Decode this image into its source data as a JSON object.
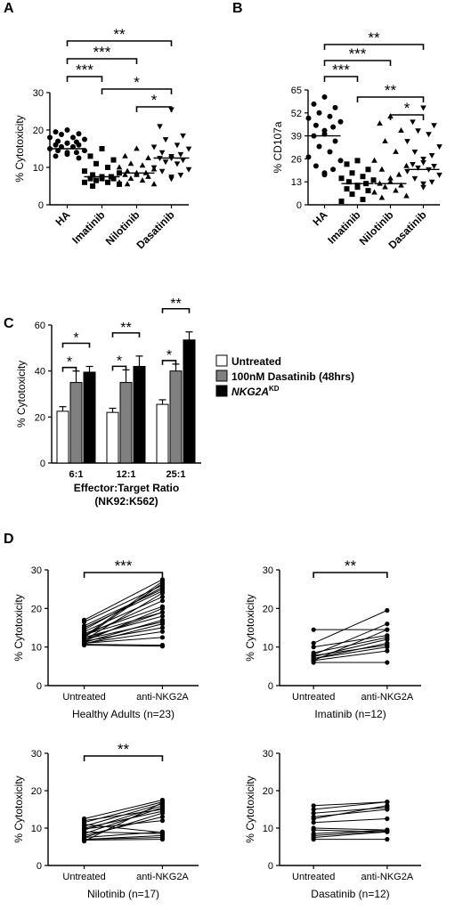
{
  "panels": [
    {
      "letter": "A"
    },
    {
      "letter": "B"
    },
    {
      "letter": "C"
    },
    {
      "letter": "D"
    }
  ],
  "chart_data": [
    {
      "id": "A",
      "type": "scatter",
      "ylabel": "% Cytotoxicity",
      "ylim": [
        0,
        30
      ],
      "yticks": [
        0,
        10,
        20,
        30
      ],
      "categories": [
        "HA",
        "Imatinib",
        "Nilotinib",
        "Dasatinib"
      ],
      "markers": [
        "circle",
        "square",
        "triangle",
        "triangle-down"
      ],
      "medians": [
        15,
        7.5,
        8.5,
        12.5
      ],
      "points": [
        [
          20,
          19.5,
          19,
          18.8,
          18,
          18,
          17.5,
          17,
          16.8,
          16.5,
          16.5,
          16,
          16,
          15.5,
          15.5,
          15,
          14.5,
          14.5,
          14,
          14,
          13.5,
          13,
          12.5
        ],
        [
          15,
          13,
          12,
          11,
          10,
          9,
          8.5,
          8,
          7.5,
          7.5,
          7,
          7,
          7,
          6.5,
          6,
          6,
          5.5,
          5
        ],
        [
          15,
          13,
          12.5,
          11,
          10.5,
          10,
          9.5,
          9,
          8.5,
          8.5,
          8,
          8,
          7.5,
          7,
          6.5,
          6,
          5.5,
          5.5
        ],
        [
          25.5,
          21,
          18.5,
          17.5,
          16,
          15.5,
          15,
          14,
          13.5,
          13,
          12.5,
          12.5,
          12,
          11.5,
          11,
          10,
          9.5,
          9,
          8,
          7.5,
          7
        ]
      ],
      "significance": [
        {
          "from": 0,
          "to": 3,
          "label": "**"
        },
        {
          "from": 0,
          "to": 2,
          "label": "***"
        },
        {
          "from": 0,
          "to": 1,
          "label": "***"
        },
        {
          "from": 1,
          "to": 3,
          "label": "*"
        },
        {
          "from": 2,
          "to": 3,
          "label": "*"
        }
      ]
    },
    {
      "id": "B",
      "type": "scatter",
      "ylabel": "% CD107a",
      "ylim": [
        0,
        65
      ],
      "yticks": [
        0,
        13,
        26,
        39,
        52,
        65
      ],
      "categories": [
        "HA",
        "Imatinib",
        "Nilotinib",
        "Dasatinib"
      ],
      "markers": [
        "circle",
        "square",
        "triangle",
        "triangle-down"
      ],
      "medians": [
        39,
        12,
        12,
        20
      ],
      "points": [
        [
          61,
          57,
          55,
          52,
          50,
          49,
          47,
          45,
          44,
          42,
          40,
          39,
          36,
          33,
          30,
          27,
          25,
          22,
          20,
          18,
          17
        ],
        [
          25,
          23,
          20,
          18,
          16,
          15,
          14,
          13,
          12,
          11,
          10,
          9,
          8,
          6,
          3,
          2
        ],
        [
          50,
          46,
          42,
          36,
          30,
          25,
          22,
          20,
          17,
          15,
          13,
          12,
          11,
          10,
          8,
          7,
          5,
          4
        ],
        [
          55,
          47,
          45,
          42,
          40,
          36,
          33,
          30,
          28,
          26,
          24,
          23,
          22,
          21,
          20,
          19,
          17,
          15,
          13,
          12,
          10
        ]
      ],
      "significance": [
        {
          "from": 0,
          "to": 3,
          "label": "**"
        },
        {
          "from": 0,
          "to": 2,
          "label": "***"
        },
        {
          "from": 0,
          "to": 1,
          "label": "***"
        },
        {
          "from": 1,
          "to": 3,
          "label": "**"
        },
        {
          "from": 2,
          "to": 3,
          "label": "*"
        }
      ]
    },
    {
      "id": "C",
      "type": "bar",
      "ylabel": "% Cytotoxicity",
      "xlabel": "Effector:Target Ratio",
      "xlabel2": "(NK92:K562)",
      "ylim": [
        0,
        60
      ],
      "yticks": [
        0,
        20,
        40,
        60
      ],
      "categories": [
        "6:1",
        "12:1",
        "25:1"
      ],
      "series": [
        {
          "name": "Untreated",
          "color": "#ffffff",
          "values": [
            22.5,
            22,
            25.5
          ],
          "errors": [
            2,
            1.8,
            2
          ]
        },
        {
          "name": "100nM Dasatinib (48hrs)",
          "color": "#808080",
          "values": [
            35,
            35,
            40
          ],
          "errors": [
            5,
            5.5,
            3
          ]
        },
        {
          "name": "NKG2A",
          "name_sup": "KD",
          "color": "#000000",
          "values": [
            39.5,
            42,
            53.5
          ],
          "errors": [
            2.5,
            4.5,
            3.5
          ]
        }
      ],
      "significance": [
        {
          "group": 0,
          "brackets": [
            {
              "a": 0,
              "b": 1,
              "label": "*"
            },
            {
              "a": 0,
              "b": 2,
              "label": "*"
            }
          ]
        },
        {
          "group": 1,
          "brackets": [
            {
              "a": 0,
              "b": 1,
              "label": "*"
            },
            {
              "a": 0,
              "b": 2,
              "label": "**"
            }
          ]
        },
        {
          "group": 2,
          "brackets": [
            {
              "a": 0,
              "b": 1,
              "label": "*"
            },
            {
              "a": 0,
              "b": 2,
              "label": "**"
            }
          ]
        }
      ]
    },
    {
      "id": "D1",
      "type": "line",
      "ylabel": "% Cytotoxicity",
      "xlabel": "Healthy Adults (n=23)",
      "categories": [
        "Untreated",
        "anti-NKG2A"
      ],
      "ylim": [
        0,
        30
      ],
      "yticks": [
        0,
        10,
        20,
        30
      ],
      "pairs": [
        [
          17,
          27.5
        ],
        [
          16.5,
          26
        ],
        [
          15.5,
          25
        ],
        [
          15,
          24.5
        ],
        [
          14.5,
          25.5
        ],
        [
          14,
          23
        ],
        [
          13.5,
          20.5
        ],
        [
          13,
          22
        ],
        [
          12.5,
          26.5
        ],
        [
          12.5,
          18
        ],
        [
          12,
          19
        ],
        [
          12,
          16.5
        ],
        [
          11.8,
          24
        ],
        [
          11.5,
          15
        ],
        [
          11.5,
          20
        ],
        [
          11.2,
          17
        ],
        [
          11,
          14
        ],
        [
          11,
          12.5
        ],
        [
          10.8,
          16
        ],
        [
          10.5,
          10.2
        ],
        [
          12.8,
          27
        ],
        [
          13.2,
          19
        ],
        [
          10.7,
          10.5
        ]
      ],
      "significance": "***"
    },
    {
      "id": "D2",
      "type": "line",
      "ylabel": "% Cytotoxicity",
      "xlabel": "Imatinib (n=12)",
      "categories": [
        "Untreated",
        "anti-NKG2A"
      ],
      "ylim": [
        0,
        30
      ],
      "yticks": [
        0,
        10,
        20,
        30
      ],
      "pairs": [
        [
          14.5,
          14.5
        ],
        [
          11,
          19.5
        ],
        [
          10,
          13
        ],
        [
          8,
          16
        ],
        [
          7.5,
          12
        ],
        [
          7,
          11
        ],
        [
          7,
          10
        ],
        [
          6.5,
          14.5
        ],
        [
          6.5,
          9
        ],
        [
          6,
          6
        ],
        [
          8.5,
          12.5
        ],
        [
          7.8,
          10.5
        ]
      ],
      "significance": "**"
    },
    {
      "id": "D3",
      "type": "line",
      "ylabel": "% Cytotoxicity",
      "xlabel": "Nilotinib (n=17)",
      "categories": [
        "Untreated",
        "anti-NKG2A"
      ],
      "ylim": [
        0,
        30
      ],
      "yticks": [
        0,
        10,
        20,
        30
      ],
      "pairs": [
        [
          12.5,
          17.5
        ],
        [
          12,
          15
        ],
        [
          11.5,
          17
        ],
        [
          10.5,
          16.5
        ],
        [
          10,
          14.5
        ],
        [
          9.5,
          16
        ],
        [
          9,
          8.5
        ],
        [
          8.5,
          15.5
        ],
        [
          8,
          13
        ],
        [
          7.5,
          9
        ],
        [
          7.5,
          14
        ],
        [
          7,
          8
        ],
        [
          7,
          7.5
        ],
        [
          6.8,
          7
        ],
        [
          6.5,
          16.8
        ],
        [
          9.8,
          12
        ],
        [
          11,
          8.8
        ]
      ],
      "significance": "**"
    },
    {
      "id": "D4",
      "type": "line",
      "ylabel": "% Cytotoxicity",
      "xlabel": "Dasatinib (n=12)",
      "categories": [
        "Untreated",
        "anti-NKG2A"
      ],
      "ylim": [
        0,
        30
      ],
      "yticks": [
        0,
        10,
        20,
        30
      ],
      "pairs": [
        [
          16,
          17
        ],
        [
          15,
          17
        ],
        [
          14,
          15.5
        ],
        [
          12.5,
          16
        ],
        [
          11.5,
          12.5
        ],
        [
          10,
          9.5
        ],
        [
          9.5,
          9
        ],
        [
          8.5,
          9.5
        ],
        [
          7.5,
          9
        ],
        [
          7,
          7
        ],
        [
          13,
          15
        ],
        [
          8,
          9.2
        ]
      ],
      "significance": ""
    }
  ]
}
